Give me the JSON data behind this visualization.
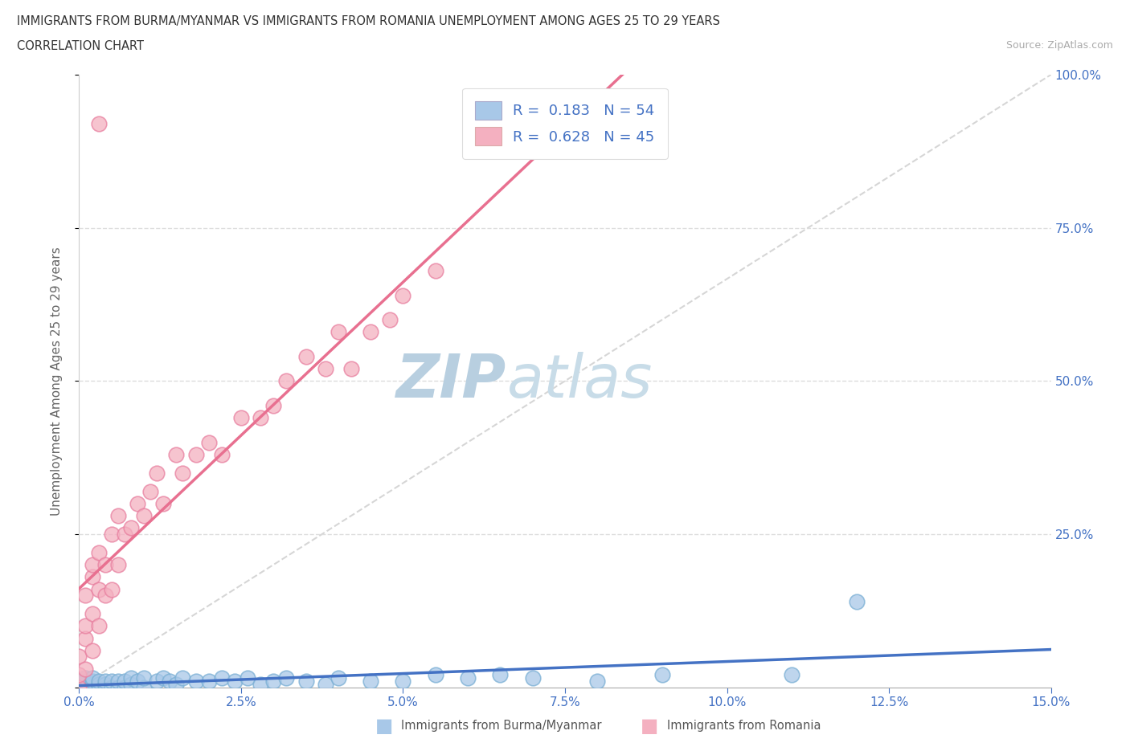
{
  "title_line1": "IMMIGRANTS FROM BURMA/MYANMAR VS IMMIGRANTS FROM ROMANIA UNEMPLOYMENT AMONG AGES 25 TO 29 YEARS",
  "title_line2": "CORRELATION CHART",
  "source": "Source: ZipAtlas.com",
  "ylabel": "Unemployment Among Ages 25 to 29 years",
  "xlim": [
    0.0,
    0.15
  ],
  "ylim": [
    0.0,
    1.0
  ],
  "R_burma": 0.183,
  "N_burma": 54,
  "R_romania": 0.628,
  "N_romania": 45,
  "color_burma": "#a8c8e8",
  "color_burma_edge": "#7aafd4",
  "color_romania": "#f4b0c0",
  "color_romania_edge": "#e880a0",
  "color_burma_line": "#4472c4",
  "color_romania_line": "#e87090",
  "legend_text_color": "#4472c4",
  "watermark_color": "#ccdcee",
  "background_color": "#ffffff",
  "burma_x": [
    0.0,
    0.0,
    0.0,
    0.001,
    0.001,
    0.001,
    0.001,
    0.002,
    0.002,
    0.002,
    0.002,
    0.003,
    0.003,
    0.003,
    0.004,
    0.004,
    0.004,
    0.005,
    0.005,
    0.006,
    0.006,
    0.007,
    0.007,
    0.008,
    0.008,
    0.009,
    0.01,
    0.01,
    0.012,
    0.013,
    0.014,
    0.015,
    0.016,
    0.018,
    0.02,
    0.022,
    0.024,
    0.026,
    0.028,
    0.03,
    0.032,
    0.035,
    0.038,
    0.04,
    0.045,
    0.05,
    0.055,
    0.06,
    0.065,
    0.07,
    0.08,
    0.09,
    0.11,
    0.12
  ],
  "burma_y": [
    0.0,
    0.005,
    0.01,
    0.0,
    0.005,
    0.01,
    0.015,
    0.0,
    0.005,
    0.01,
    0.015,
    0.0,
    0.005,
    0.01,
    0.0,
    0.005,
    0.01,
    0.0,
    0.01,
    0.0,
    0.01,
    0.0,
    0.01,
    0.005,
    0.015,
    0.01,
    0.0,
    0.015,
    0.01,
    0.015,
    0.01,
    0.005,
    0.015,
    0.01,
    0.01,
    0.015,
    0.01,
    0.015,
    0.005,
    0.01,
    0.015,
    0.01,
    0.005,
    0.015,
    0.01,
    0.01,
    0.02,
    0.015,
    0.02,
    0.015,
    0.01,
    0.02,
    0.02,
    0.14
  ],
  "romania_x": [
    0.0,
    0.0,
    0.0,
    0.001,
    0.001,
    0.001,
    0.001,
    0.002,
    0.002,
    0.002,
    0.002,
    0.003,
    0.003,
    0.003,
    0.004,
    0.004,
    0.005,
    0.005,
    0.006,
    0.006,
    0.007,
    0.008,
    0.009,
    0.01,
    0.011,
    0.012,
    0.013,
    0.015,
    0.016,
    0.018,
    0.02,
    0.022,
    0.025,
    0.028,
    0.03,
    0.032,
    0.035,
    0.038,
    0.04,
    0.042,
    0.045,
    0.048,
    0.05,
    0.055,
    0.003
  ],
  "romania_y": [
    0.0,
    0.02,
    0.05,
    0.03,
    0.08,
    0.1,
    0.15,
    0.06,
    0.12,
    0.18,
    0.2,
    0.1,
    0.16,
    0.22,
    0.15,
    0.2,
    0.16,
    0.25,
    0.2,
    0.28,
    0.25,
    0.26,
    0.3,
    0.28,
    0.32,
    0.35,
    0.3,
    0.38,
    0.35,
    0.38,
    0.4,
    0.38,
    0.44,
    0.44,
    0.46,
    0.5,
    0.54,
    0.52,
    0.58,
    0.52,
    0.58,
    0.6,
    0.64,
    0.68,
    0.92
  ]
}
